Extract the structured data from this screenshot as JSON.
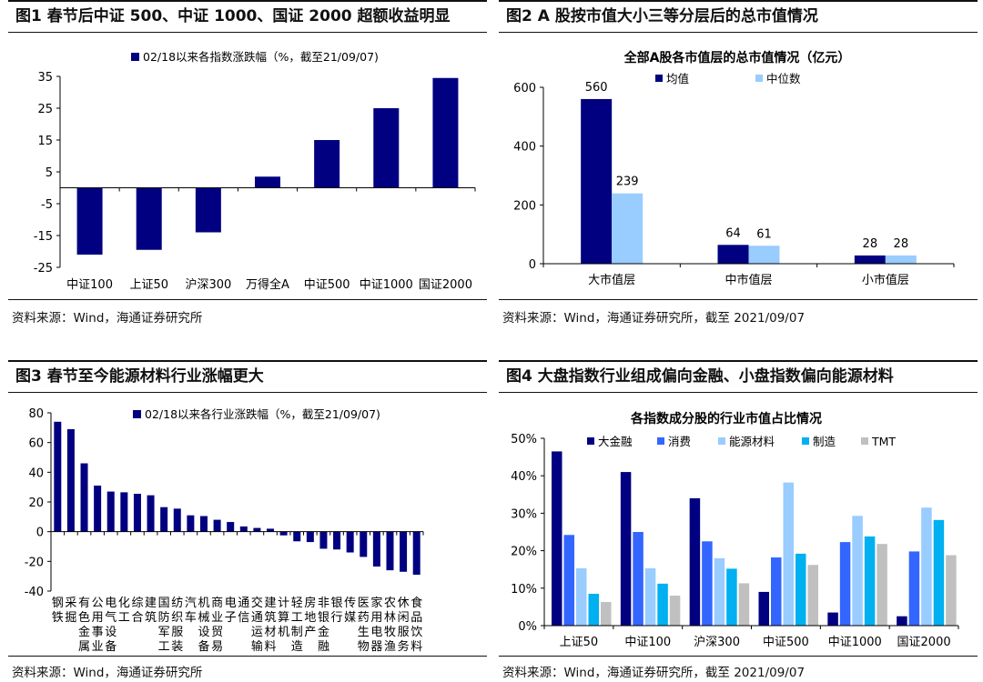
{
  "panels": [
    {
      "title": "图1   春节后中证 500、中证 1000、国证 2000 超额收益明显",
      "source": "资料来源：Wind，海通证券研究所"
    },
    {
      "title": "图2   A 股按市值大小三等分层后的总市值情况",
      "source": "资料来源：Wind，海通证券研究所，截至 2021/09/07"
    },
    {
      "title": "图3   春节至今能源材料行业涨幅更大",
      "source": "资料来源：Wind，海通证券研究所"
    },
    {
      "title": "图4   大盘指数行业组成偏向金融、小盘指数偏向能源材料",
      "source": "资料来源：Wind，海通证券研究所，截至 2021/09/07"
    }
  ],
  "chart_data": [
    {
      "type": "bar",
      "title": "",
      "legend": "02/18以来各指数涨跌幅（%，截至21/09/07)",
      "categories": [
        "中证100",
        "上证50",
        "沪深300",
        "万得全A",
        "中证500",
        "中证1000",
        "国证2000"
      ],
      "values": [
        -21,
        -19.5,
        -14,
        3.5,
        15,
        25,
        34.5
      ],
      "yticks": [
        35,
        25,
        15,
        5,
        -5,
        -15,
        -25
      ],
      "ylim": [
        -25,
        35
      ],
      "color": "#000080"
    },
    {
      "type": "bar",
      "title": "全部A股各市值层的总市值情况（亿元）",
      "categories": [
        "大市值层",
        "中市值层",
        "小市值层"
      ],
      "series": [
        {
          "name": "均值",
          "values": [
            560,
            64,
            28
          ],
          "labels": [
            "560",
            "64",
            "28"
          ],
          "color": "#000080"
        },
        {
          "name": "中位数",
          "values": [
            239,
            61,
            28
          ],
          "labels": [
            "239",
            "61",
            "28"
          ],
          "color": "#99CCFF"
        }
      ],
      "yticks": [
        600,
        400,
        200,
        0
      ],
      "ylim": [
        0,
        600
      ]
    },
    {
      "type": "bar",
      "title": "",
      "legend": "02/18以来各行业涨跌幅（%，截至21/09/07)",
      "categories": [
        "钢铁",
        "采掘",
        "有色金属",
        "公用事业",
        "电气设备",
        "化工",
        "综合",
        "建筑",
        "国防军工",
        "纺织服装",
        "汽车",
        "机械",
        "商业贸易",
        "电子",
        "通信",
        "交通运输",
        "建筑材料",
        "计算机",
        "轻工制造",
        "房地产",
        "非银金融",
        "银行",
        "传媒",
        "医药生物",
        "家用电器",
        "农林牧渔",
        "休闲服务",
        "食品饮料"
      ],
      "labels": [
        [
          "钢",
          "铁"
        ],
        [
          "采",
          "掘"
        ],
        [
          "有",
          "色",
          "金",
          "属"
        ],
        [
          "公",
          "用",
          "事",
          "业"
        ],
        [
          "电",
          "气",
          "设",
          "备"
        ],
        [
          "化",
          "工"
        ],
        [
          "综",
          "合"
        ],
        [
          "建",
          "筑"
        ],
        [
          "国",
          "防",
          "军",
          "工"
        ],
        [
          "纺",
          "织",
          "服",
          "装"
        ],
        [
          "汽",
          "车"
        ],
        [
          "机",
          "械",
          "设",
          "备"
        ],
        [
          "商",
          "业",
          "贸",
          "易"
        ],
        [
          "电",
          "子"
        ],
        [
          "通",
          "信"
        ],
        [
          "交",
          "通",
          "运",
          "输"
        ],
        [
          "建",
          "筑",
          "材",
          "料"
        ],
        [
          "计",
          "算",
          "机"
        ],
        [
          "轻",
          "工",
          "制",
          "造"
        ],
        [
          "房",
          "地",
          "产"
        ],
        [
          "非",
          "银",
          "金",
          "融"
        ],
        [
          "银",
          "行"
        ],
        [
          "传",
          "媒"
        ],
        [
          "医",
          "药",
          "生",
          "物"
        ],
        [
          "家",
          "用",
          "电",
          "器"
        ],
        [
          "农",
          "林",
          "牧",
          "渔"
        ],
        [
          "休",
          "闲",
          "服",
          "务"
        ],
        [
          "食",
          "品",
          "饮",
          "料"
        ]
      ],
      "values": [
        74,
        69,
        46,
        31,
        27,
        26.5,
        25.5,
        24.5,
        16.5,
        15.5,
        11,
        10.5,
        8,
        6.5,
        3.5,
        2.5,
        2,
        -2.5,
        -6.5,
        -7,
        -11.5,
        -12,
        -14,
        -17,
        -23.5,
        -26,
        -27,
        -29
      ],
      "yticks": [
        80,
        60,
        40,
        20,
        0,
        -20,
        -40
      ],
      "ylim": [
        -40,
        80
      ],
      "color": "#000080"
    },
    {
      "type": "bar",
      "title": "各指数成分股的行业市值占比情况",
      "categories": [
        "上证50",
        "中证100",
        "沪深300",
        "中证500",
        "中证1000",
        "国证2000"
      ],
      "series": [
        {
          "name": "大金融",
          "values": [
            46.5,
            41,
            34,
            9,
            3.5,
            2.5
          ],
          "color": "#000080"
        },
        {
          "name": "消费",
          "values": [
            24.2,
            25,
            22.5,
            18.2,
            22.3,
            19.8
          ],
          "color": "#3366FF"
        },
        {
          "name": "能源材料",
          "values": [
            15.3,
            15.3,
            18,
            38.2,
            29.3,
            31.5
          ],
          "color": "#99CCFF"
        },
        {
          "name": "制造",
          "values": [
            8.5,
            11.2,
            15.2,
            19.2,
            23.8,
            28.2
          ],
          "color": "#00B0F0"
        },
        {
          "name": "TMT",
          "values": [
            6.3,
            8,
            11.3,
            16.2,
            21.8,
            18.8
          ],
          "color": "#C0C0C0"
        }
      ],
      "yticks": [
        "50%",
        "40%",
        "30%",
        "20%",
        "10%",
        "0%"
      ],
      "ylim": [
        0,
        50
      ]
    }
  ]
}
